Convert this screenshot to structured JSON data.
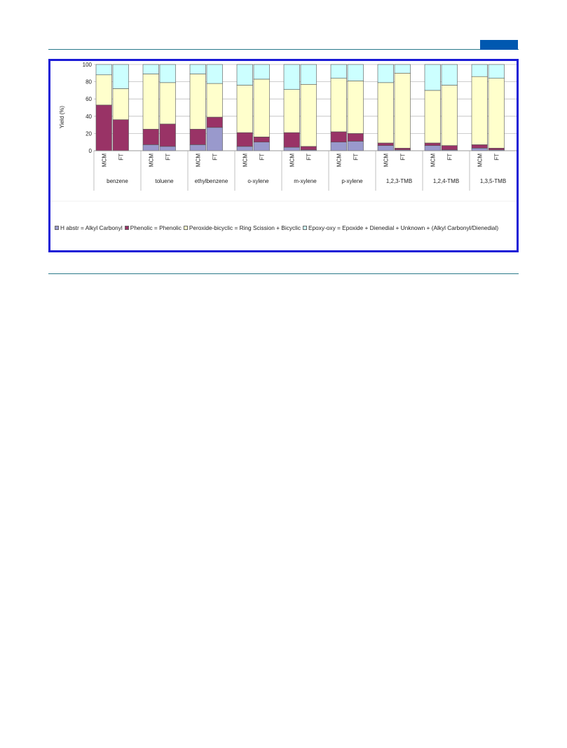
{
  "chart_data": {
    "type": "bar",
    "stacked": true,
    "ylabel": "Yield (%)",
    "xlabel": "",
    "ylim": [
      0,
      100
    ],
    "yticks": [
      0,
      20,
      40,
      60,
      80,
      100
    ],
    "grid": true,
    "legend_position": "bottom",
    "groups": [
      "benzene",
      "toluene",
      "ethylbenzene",
      "o-xylene",
      "m-xylene",
      "p-xylene",
      "1,2,3-TMB",
      "1,2,4-TMB",
      "1,3,5-TMB"
    ],
    "bar_labels": [
      "MCM",
      "FT"
    ],
    "series": [
      {
        "name": "H abstr = Alkyl Carbonyl",
        "color": "#9999cc",
        "values": [
          [
            0,
            0
          ],
          [
            7,
            5
          ],
          [
            7,
            27
          ],
          [
            5,
            10
          ],
          [
            4,
            1
          ],
          [
            10,
            11
          ],
          [
            6,
            1
          ],
          [
            6,
            1
          ],
          [
            3,
            1
          ]
        ]
      },
      {
        "name": "Phenolic = Phenolic",
        "color": "#993366",
        "values": [
          [
            53,
            36
          ],
          [
            18,
            26
          ],
          [
            18,
            12
          ],
          [
            16,
            6
          ],
          [
            17,
            4
          ],
          [
            12,
            9
          ],
          [
            3,
            2
          ],
          [
            3,
            5
          ],
          [
            4,
            2
          ]
        ]
      },
      {
        "name": "Peroxide-bicyclic = Ring Scission + Bicyclic",
        "color": "#ffffcc",
        "values": [
          [
            35,
            36
          ],
          [
            64,
            48
          ],
          [
            64,
            39
          ],
          [
            55,
            67
          ],
          [
            50,
            72
          ],
          [
            62,
            61
          ],
          [
            70,
            87
          ],
          [
            61,
            70
          ],
          [
            79,
            81
          ]
        ]
      },
      {
        "name": "Epoxy-oxy = Epoxide + Dienedial + Unknown + (Alkyl Carbonyl/Dienedial)",
        "color": "#ccffff",
        "values": [
          [
            12,
            28
          ],
          [
            11,
            21
          ],
          [
            11,
            22
          ],
          [
            24,
            17
          ],
          [
            29,
            23
          ],
          [
            16,
            19
          ],
          [
            21,
            10
          ],
          [
            30,
            24
          ],
          [
            14,
            16
          ]
        ]
      }
    ]
  }
}
